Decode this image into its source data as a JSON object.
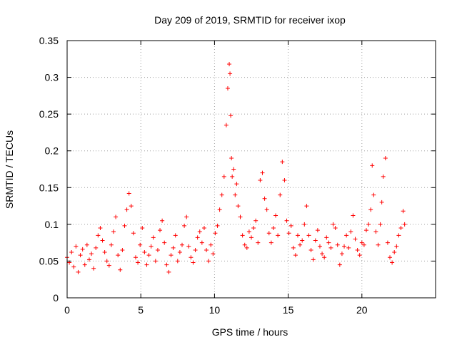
{
  "chart_data": {
    "type": "scatter",
    "title": "Day 209 of 2019, SRMTID for receiver ixop",
    "xlabel": "GPS time / hours",
    "ylabel": "SRMTID / TECUs",
    "xlim": [
      0,
      25
    ],
    "ylim": [
      0,
      0.35
    ],
    "xticks": [
      0,
      5,
      10,
      15,
      20
    ],
    "xtick_labels": [
      "0",
      "5",
      "10",
      "15",
      "20"
    ],
    "yticks": [
      0,
      0.05,
      0.1,
      0.15,
      0.2,
      0.25,
      0.3,
      0.35
    ],
    "ytick_labels": [
      "0",
      "0.05",
      "0.1",
      "0.15",
      "0.2",
      "0.25",
      "0.3",
      "0.35"
    ],
    "grid": true,
    "marker": "plus",
    "color": "#ff0000",
    "series": [
      {
        "name": "SRMTID",
        "x": [
          0.0,
          0.15,
          0.3,
          0.45,
          0.6,
          0.75,
          0.9,
          1.05,
          1.2,
          1.35,
          1.5,
          1.65,
          1.8,
          1.95,
          2.1,
          2.25,
          2.4,
          2.55,
          2.7,
          2.85,
          3.0,
          3.15,
          3.3,
          3.45,
          3.6,
          3.75,
          3.9,
          4.05,
          4.2,
          4.35,
          4.5,
          4.65,
          4.8,
          4.95,
          5.1,
          5.25,
          5.4,
          5.55,
          5.7,
          5.85,
          6.0,
          6.15,
          6.3,
          6.45,
          6.6,
          6.75,
          6.9,
          7.05,
          7.2,
          7.35,
          7.5,
          7.65,
          7.8,
          7.95,
          8.1,
          8.25,
          8.4,
          8.55,
          8.7,
          8.85,
          9.0,
          9.15,
          9.3,
          9.45,
          9.6,
          9.75,
          9.9,
          10.05,
          10.2,
          10.35,
          10.5,
          10.65,
          10.8,
          10.9,
          11.0,
          11.05,
          11.1,
          11.15,
          11.2,
          11.3,
          11.4,
          11.5,
          11.6,
          11.75,
          11.9,
          12.05,
          12.2,
          12.35,
          12.5,
          12.65,
          12.8,
          12.95,
          13.1,
          13.25,
          13.4,
          13.55,
          13.7,
          13.85,
          14.0,
          14.15,
          14.3,
          14.45,
          14.6,
          14.75,
          14.9,
          15.05,
          15.2,
          15.35,
          15.5,
          15.65,
          15.8,
          15.95,
          16.1,
          16.25,
          16.4,
          16.55,
          16.7,
          16.85,
          17.0,
          17.15,
          17.3,
          17.45,
          17.6,
          17.75,
          17.9,
          18.05,
          18.2,
          18.35,
          18.5,
          18.65,
          18.8,
          18.95,
          19.1,
          19.25,
          19.4,
          19.55,
          19.7,
          19.85,
          20.0,
          20.15,
          20.3,
          20.45,
          20.6,
          20.7,
          20.8,
          20.95,
          21.1,
          21.25,
          21.35,
          21.45,
          21.6,
          21.75,
          21.9,
          22.05,
          22.2,
          22.35,
          22.5,
          22.65,
          22.8,
          22.9
        ],
        "y": [
          0.055,
          0.048,
          0.062,
          0.042,
          0.07,
          0.035,
          0.058,
          0.066,
          0.045,
          0.072,
          0.052,
          0.06,
          0.04,
          0.068,
          0.085,
          0.095,
          0.078,
          0.062,
          0.05,
          0.044,
          0.072,
          0.09,
          0.11,
          0.058,
          0.038,
          0.065,
          0.098,
          0.12,
          0.142,
          0.125,
          0.088,
          0.055,
          0.048,
          0.072,
          0.095,
          0.062,
          0.045,
          0.058,
          0.07,
          0.082,
          0.05,
          0.065,
          0.092,
          0.105,
          0.075,
          0.045,
          0.035,
          0.058,
          0.068,
          0.085,
          0.05,
          0.062,
          0.072,
          0.098,
          0.11,
          0.07,
          0.055,
          0.048,
          0.065,
          0.082,
          0.09,
          0.075,
          0.095,
          0.065,
          0.05,
          0.072,
          0.06,
          0.088,
          0.098,
          0.12,
          0.14,
          0.165,
          0.235,
          0.285,
          0.318,
          0.305,
          0.248,
          0.19,
          0.165,
          0.175,
          0.14,
          0.155,
          0.125,
          0.11,
          0.085,
          0.072,
          0.068,
          0.09,
          0.082,
          0.095,
          0.105,
          0.075,
          0.16,
          0.17,
          0.135,
          0.12,
          0.088,
          0.075,
          0.095,
          0.112,
          0.085,
          0.14,
          0.185,
          0.16,
          0.105,
          0.088,
          0.098,
          0.068,
          0.058,
          0.085,
          0.072,
          0.078,
          0.1,
          0.125,
          0.085,
          0.065,
          0.052,
          0.078,
          0.092,
          0.07,
          0.06,
          0.055,
          0.082,
          0.075,
          0.068,
          0.1,
          0.095,
          0.072,
          0.045,
          0.06,
          0.07,
          0.085,
          0.068,
          0.09,
          0.112,
          0.08,
          0.065,
          0.058,
          0.075,
          0.072,
          0.092,
          0.1,
          0.12,
          0.18,
          0.14,
          0.09,
          0.072,
          0.1,
          0.13,
          0.165,
          0.19,
          0.075,
          0.055,
          0.048,
          0.062,
          0.07,
          0.085,
          0.095,
          0.118,
          0.1
        ]
      }
    ]
  }
}
